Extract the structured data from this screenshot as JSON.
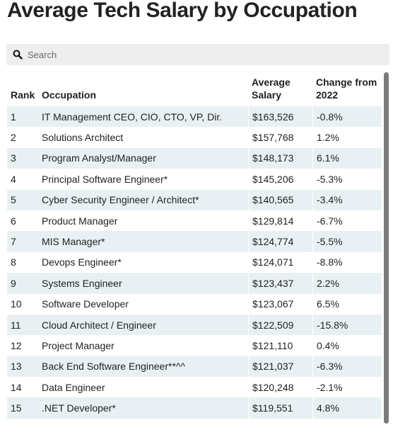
{
  "title": "Average Tech Salary by Occupation",
  "search": {
    "placeholder": "Search"
  },
  "table": {
    "headers": {
      "rank": "Rank",
      "occupation": "Occupation",
      "salary": "Average Salary",
      "change": "Change from 2022"
    },
    "rows": [
      {
        "rank": "1",
        "occupation": "IT Management CEO, CIO, CTO, VP, Dir.",
        "salary": "$163,526",
        "change": "-0.8%"
      },
      {
        "rank": "2",
        "occupation": "Solutions Architect",
        "salary": "$157,768",
        "change": "1.2%"
      },
      {
        "rank": "3",
        "occupation": "Program Analyst/Manager",
        "salary": "$148,173",
        "change": "6.1%"
      },
      {
        "rank": "4",
        "occupation": "Principal Software Engineer*",
        "salary": "$145,206",
        "change": "-5.3%"
      },
      {
        "rank": "5",
        "occupation": "Cyber Security Engineer / Architect*",
        "salary": "$140,565",
        "change": "-3.4%"
      },
      {
        "rank": "6",
        "occupation": "Product Manager",
        "salary": "$129,814",
        "change": "-6.7%"
      },
      {
        "rank": "7",
        "occupation": "MIS Manager*",
        "salary": "$124,774",
        "change": "-5.5%"
      },
      {
        "rank": "8",
        "occupation": "Devops Engineer*",
        "salary": "$124,071",
        "change": "-8.8%"
      },
      {
        "rank": "9",
        "occupation": "Systems Engineer",
        "salary": "$123,437",
        "change": "2.2%"
      },
      {
        "rank": "10",
        "occupation": "Software Developer",
        "salary": "$123,067",
        "change": "6.5%"
      },
      {
        "rank": "11",
        "occupation": "Cloud Architect / Engineer",
        "salary": "$122,509",
        "change": "-15.8%"
      },
      {
        "rank": "12",
        "occupation": "Project Manager",
        "salary": "$121,110",
        "change": "0.4%"
      },
      {
        "rank": "13",
        "occupation": "Back End Software Engineer**^^",
        "salary": "$121,037",
        "change": "-6.3%"
      },
      {
        "rank": "14",
        "occupation": "Data Engineer",
        "salary": "$120,248",
        "change": "-2.1%"
      },
      {
        "rank": "15",
        "occupation": ".NET Developer*",
        "salary": "$119,551",
        "change": "4.8%"
      }
    ]
  },
  "colors": {
    "stripe": "#e9f0f3",
    "search_bg": "#eeeeee",
    "scrollbar": "#7a7a7a"
  }
}
